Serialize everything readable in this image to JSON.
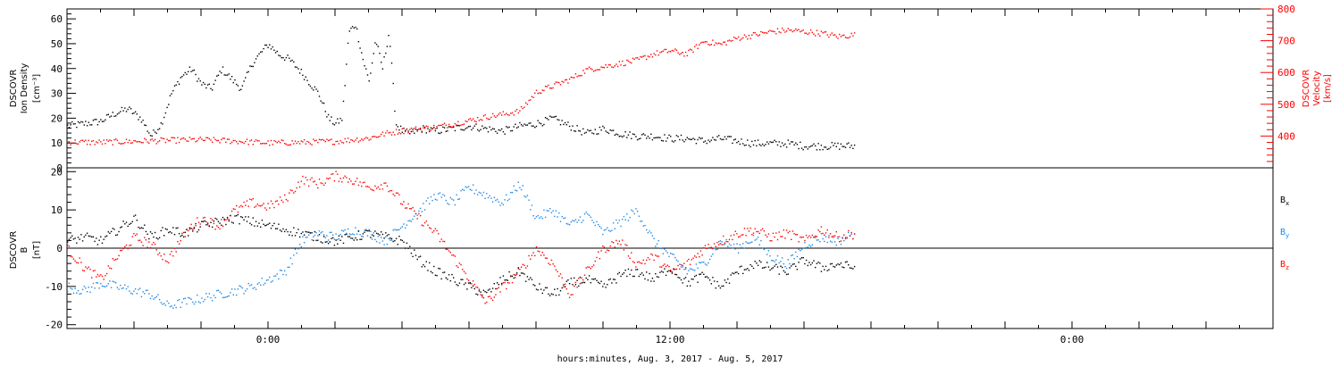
{
  "colors": {
    "black": "#000000",
    "red": "#ff0000",
    "blue": "#1e88e5"
  },
  "chart_data": [
    {
      "type": "scatter",
      "panel": "top",
      "left_axis": {
        "label_lines": [
          "DSCOVR",
          "Ion Density",
          "[cm⁻³]"
        ],
        "ylim": [
          0,
          64
        ],
        "ticks": [
          0,
          10,
          20,
          30,
          40,
          50,
          60
        ]
      },
      "right_axis": {
        "label_lines": [
          "DSCOVR",
          "Velocity",
          "[km/s]"
        ],
        "ylim": [
          300,
          800
        ],
        "ticks": [
          400,
          500,
          600,
          700,
          800
        ]
      },
      "xlim_hours": [
        -6,
        30
      ],
      "series": [
        {
          "axis": "left",
          "color": "#000000",
          "x": [
            -6,
            -5.5,
            -5,
            -4.6,
            -4.2,
            -3.8,
            -3.5,
            -3.2,
            -2.9,
            -2.6,
            -2.3,
            -2,
            -1.7,
            -1.4,
            -1.1,
            -0.8,
            -0.5,
            -0.2,
            0,
            0.3,
            0.6,
            0.9,
            1.2,
            1.5,
            1.8,
            2,
            2.2,
            2.4,
            2.6,
            2.8,
            3,
            3.2,
            3.4,
            3.6,
            3.8,
            4,
            4.2,
            4.4,
            4.6,
            5,
            5.5,
            6,
            6.5,
            7,
            7.5,
            8,
            8.5,
            9,
            9.5,
            10,
            10.5,
            11,
            11.5,
            12,
            12.5,
            13,
            13.5,
            14,
            14.5,
            15,
            15.5,
            16,
            16.5,
            17,
            17.5
          ],
          "y": [
            17,
            18,
            19,
            22,
            24,
            20,
            13,
            18,
            30,
            37,
            40,
            34,
            32,
            40,
            36,
            32,
            42,
            47,
            50,
            46,
            44,
            40,
            35,
            30,
            20,
            18,
            20,
            55,
            58,
            45,
            35,
            52,
            40,
            55,
            18,
            15,
            14,
            15,
            16,
            15,
            16,
            17,
            16,
            15,
            17,
            18,
            20,
            17,
            14,
            16,
            14,
            13,
            13,
            12,
            12,
            11,
            12,
            11,
            10,
            10,
            10,
            9,
            9,
            9,
            9
          ]
        },
        {
          "axis": "right",
          "color": "#ff0000",
          "x": [
            -6,
            -5,
            -4,
            -3,
            -2,
            -1,
            0,
            1,
            2,
            3,
            3.5,
            4,
            4.5,
            5,
            5.5,
            6,
            6.5,
            7,
            7.5,
            8,
            8.5,
            9,
            9.5,
            10,
            10.5,
            11,
            11.5,
            12,
            12.5,
            13,
            13.5,
            14,
            14.5,
            15,
            15.5,
            16,
            16.5,
            17,
            17.5
          ],
          "y": [
            383,
            382,
            385,
            388,
            390,
            386,
            380,
            382,
            385,
            395,
            410,
            418,
            425,
            430,
            440,
            450,
            462,
            470,
            480,
            540,
            560,
            580,
            610,
            620,
            630,
            640,
            660,
            670,
            660,
            700,
            690,
            710,
            720,
            730,
            735,
            730,
            725,
            715,
            720
          ]
        }
      ]
    },
    {
      "type": "scatter",
      "panel": "bottom",
      "left_axis": {
        "label_lines": [
          "DSCOVR",
          "B",
          "[nT]"
        ],
        "ylim": [
          -21,
          21
        ],
        "ticks": [
          -20,
          -10,
          0,
          10,
          20
        ]
      },
      "xlim_hours": [
        -6,
        30
      ],
      "x_ticks": [
        {
          "hours": 0,
          "label": "0:00"
        },
        {
          "hours": 12,
          "label": "12:00"
        },
        {
          "hours": 24,
          "label": "0:00"
        }
      ],
      "xlabel": "hours:minutes, Aug.  3, 2017 - Aug.  5, 2017",
      "series": [
        {
          "name": "Bx",
          "label_main": "B",
          "label_sub": "x",
          "color": "#000000",
          "x": [
            -6,
            -5.5,
            -5,
            -4.5,
            -4,
            -3.5,
            -3,
            -2.5,
            -2,
            -1.5,
            -1,
            -0.5,
            0,
            0.5,
            1,
            1.5,
            2,
            2.5,
            3,
            3.5,
            4,
            4.5,
            5,
            5.5,
            6,
            6.5,
            7,
            7.5,
            8,
            8.5,
            9,
            9.5,
            10,
            10.5,
            11,
            11.5,
            12,
            12.5,
            13,
            13.5,
            14,
            14.5,
            15,
            15.5,
            16,
            16.5,
            17,
            17.5
          ],
          "y": [
            2,
            3,
            2,
            5,
            8,
            3,
            5,
            4,
            6,
            7,
            8,
            7,
            6,
            5,
            4,
            3,
            2,
            3,
            4,
            3,
            2,
            -3,
            -6,
            -8,
            -10,
            -12,
            -8,
            -6,
            -10,
            -12,
            -9,
            -8,
            -10,
            -7,
            -6,
            -8,
            -5,
            -9,
            -7,
            -10,
            -6,
            -4,
            -5,
            -6,
            -3,
            -5,
            -4,
            -5
          ]
        },
        {
          "name": "By",
          "label_main": "B",
          "label_sub": "y",
          "color": "#1e88e5",
          "x": [
            -6,
            -5.5,
            -5,
            -4.5,
            -4,
            -3.5,
            -3,
            -2.5,
            -2,
            -1.5,
            -1,
            -0.5,
            0,
            0.5,
            1,
            1.5,
            2,
            2.5,
            3,
            3.5,
            4,
            4.5,
            5,
            5.5,
            6,
            6.5,
            7,
            7.5,
            8,
            8.5,
            9,
            9.5,
            10,
            10.5,
            11,
            11.5,
            12,
            12.5,
            13,
            13.5,
            14,
            14.5,
            15,
            15.5,
            16,
            16.5,
            17,
            17.5
          ],
          "y": [
            -10,
            -11,
            -9,
            -10,
            -11,
            -12,
            -15,
            -14,
            -13,
            -12,
            -11,
            -10,
            -8,
            -6,
            2,
            4,
            3,
            5,
            4,
            2,
            6,
            10,
            14,
            12,
            16,
            14,
            12,
            17,
            8,
            10,
            6,
            9,
            4,
            7,
            10,
            2,
            -2,
            -6,
            -4,
            2,
            0,
            3,
            -2,
            -4,
            1,
            3,
            2,
            4
          ]
        },
        {
          "name": "Bz",
          "label_main": "B",
          "label_sub": "z",
          "color": "#ff0000",
          "x": [
            -6,
            -5.5,
            -5,
            -4.5,
            -4,
            -3.5,
            -3,
            -2.5,
            -2,
            -1.5,
            -1,
            -0.5,
            0,
            0.5,
            1,
            1.5,
            2,
            2.5,
            3,
            3.5,
            4,
            4.5,
            5,
            5.5,
            6,
            6.5,
            7,
            7.5,
            8,
            8.5,
            9,
            9.5,
            10,
            10.5,
            11,
            11.5,
            12,
            12.5,
            13,
            13.5,
            14,
            14.5,
            15,
            15.5,
            16,
            16.5,
            17,
            17.5
          ],
          "y": [
            0,
            -5,
            -8,
            -2,
            3,
            1,
            -3,
            4,
            8,
            6,
            10,
            12,
            11,
            13,
            18,
            17,
            19,
            18,
            16,
            17,
            12,
            8,
            4,
            -2,
            -8,
            -14,
            -10,
            -6,
            0,
            -4,
            -12,
            -6,
            0,
            2,
            -4,
            -2,
            -6,
            -4,
            0,
            2,
            4,
            5,
            3,
            4,
            2,
            5,
            3,
            4
          ]
        }
      ]
    }
  ]
}
